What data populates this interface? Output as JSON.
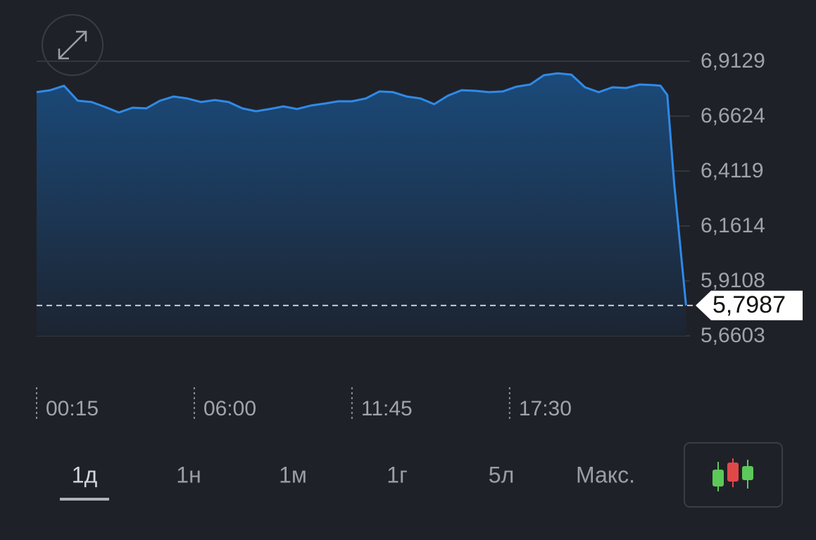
{
  "chart_data": {
    "type": "area",
    "color": "#2f8ae8",
    "x": [
      15,
      45,
      75,
      105,
      135,
      165,
      195,
      225,
      255,
      285,
      315,
      345,
      375,
      405,
      435,
      465,
      495,
      525,
      555,
      585,
      615,
      645,
      675,
      705,
      735,
      765,
      795,
      825,
      855,
      885,
      915,
      945,
      975,
      1005,
      1035,
      1065,
      1095,
      1125,
      1155,
      1185,
      1215,
      1245,
      1275,
      1305,
      1335,
      1365,
      1380,
      1395,
      1410,
      1436
    ],
    "values": [
      6.772,
      6.781,
      6.801,
      6.733,
      6.727,
      6.704,
      6.679,
      6.701,
      6.698,
      6.733,
      6.752,
      6.743,
      6.727,
      6.736,
      6.727,
      6.698,
      6.685,
      6.695,
      6.707,
      6.695,
      6.711,
      6.72,
      6.73,
      6.73,
      6.743,
      6.775,
      6.772,
      6.752,
      6.743,
      6.717,
      6.756,
      6.781,
      6.778,
      6.772,
      6.775,
      6.797,
      6.807,
      6.849,
      6.858,
      6.852,
      6.794,
      6.772,
      6.794,
      6.791,
      6.807,
      6.804,
      6.801,
      6.759,
      6.357,
      5.7987
    ],
    "xlim": [
      15,
      1440
    ],
    "xticks": [
      {
        "value": 15,
        "label": "00:15"
      },
      {
        "value": 360,
        "label": "06:00"
      },
      {
        "value": 705,
        "label": "11:45"
      },
      {
        "value": 1050,
        "label": "17:30"
      }
    ],
    "ylim": [
      5.6603,
      6.9129
    ],
    "yticks": [
      {
        "value": 6.9129,
        "label": "6,9129"
      },
      {
        "value": 6.6624,
        "label": "6,6624"
      },
      {
        "value": 6.4119,
        "label": "6,4119"
      },
      {
        "value": 6.1614,
        "label": "6,1614"
      },
      {
        "value": 5.9108,
        "label": "5,9108"
      },
      {
        "value": 5.6603,
        "label": "5,6603"
      }
    ],
    "grid": true,
    "current_value": {
      "value": 5.7987,
      "label": "5,7987"
    }
  },
  "tabs": [
    "1д",
    "1н",
    "1м",
    "1г",
    "5л",
    "Макс."
  ],
  "selected_tab": 0
}
